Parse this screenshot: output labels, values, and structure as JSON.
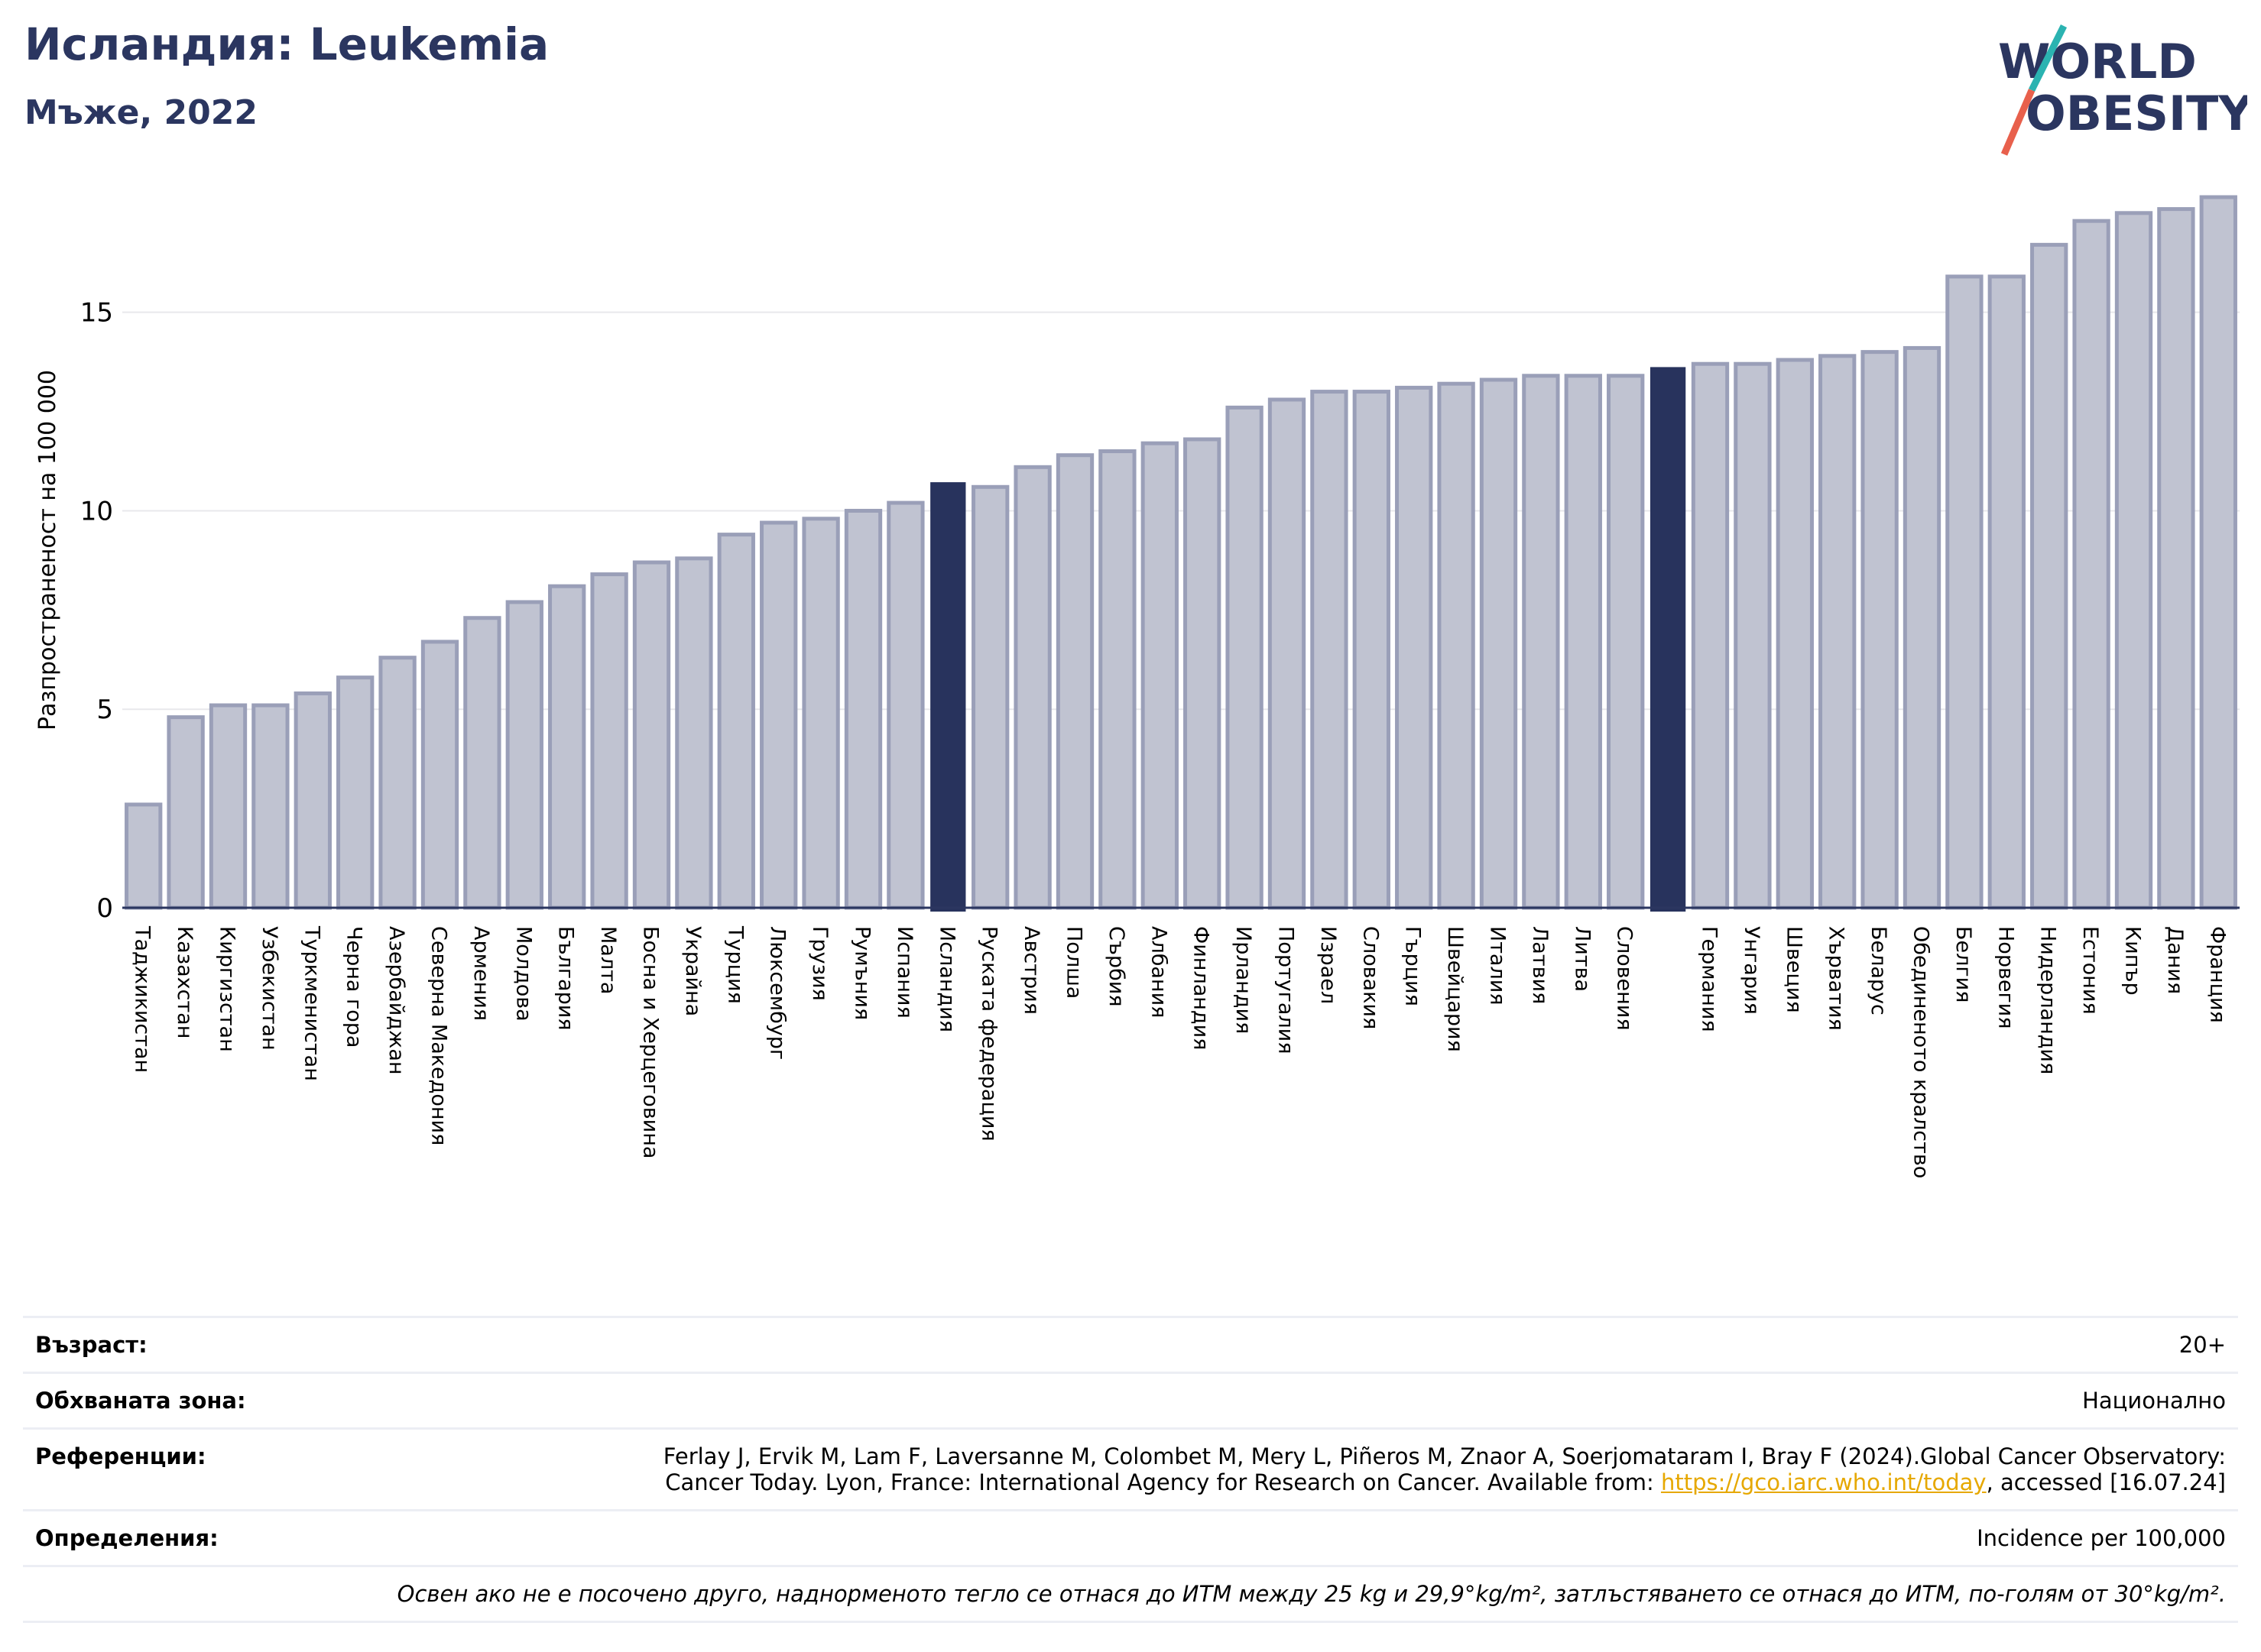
{
  "header": {
    "title": "Исландия: Leukemia",
    "subtitle": "Мъже, 2022"
  },
  "logo": {
    "line1": "WORLD",
    "line2": "OBESITY"
  },
  "colors": {
    "bar": "#c0c3d1",
    "bar_edge": "#9a9fb8",
    "highlight": "#28335d",
    "grid": "#e8e8ec",
    "title": "#2b3660"
  },
  "chart_data": {
    "type": "bar",
    "ylabel": "Разпространеност  на 100 000",
    "ylim": [
      0,
      18.3
    ],
    "yticks": [
      0,
      5,
      10,
      15
    ],
    "highlighted": [
      "Исландия",
      "Словения-Германия gap"
    ],
    "categories": [
      "Таджикистан",
      "Казахстан",
      "Киргизстан",
      "Узбекистан",
      "Туркменистан",
      "Черна гора",
      "Азербайджан",
      "Северна Македония",
      "Армения",
      "Молдова",
      "България",
      "Малта",
      "Босна и Херцеговина",
      "Украйна",
      "Турция",
      "Люксембург",
      "Грузия",
      "Румъния",
      "Испания",
      "Исландия",
      "Руската федерация",
      "Австрия",
      "Полша",
      "Сърбия",
      "Албания",
      "Финландия",
      "Ирландия",
      "Португалия",
      "Израел",
      "Словакия",
      "Гърция",
      "Швейцария",
      "Италия",
      "Латвия",
      "Литва",
      "Словения",
      "",
      "Германия",
      "Унгария",
      "Швеция",
      "Хърватия",
      "Беларус",
      "Обединеното кралство",
      "Белгия",
      "Норвегия",
      "Нидерландия",
      "Естония",
      "Кипър",
      "Дания",
      "Франция"
    ],
    "values": [
      2.6,
      4.8,
      5.1,
      5.1,
      5.4,
      5.8,
      6.3,
      6.7,
      7.3,
      7.7,
      8.1,
      8.4,
      8.7,
      8.8,
      9.4,
      9.7,
      9.8,
      10.0,
      10.2,
      10.7,
      10.6,
      11.1,
      11.4,
      11.5,
      11.7,
      11.8,
      12.6,
      12.8,
      13.0,
      13.0,
      13.1,
      13.2,
      13.3,
      13.4,
      13.4,
      13.4,
      13.6,
      13.7,
      13.7,
      13.8,
      13.9,
      14.0,
      14.1,
      15.9,
      15.9,
      16.7,
      17.3,
      17.5,
      17.6,
      17.9
    ],
    "highlight_index": [
      19,
      36
    ]
  },
  "info": {
    "age_label": "Възраст:",
    "age_value": "20+",
    "coverage_label": "Обхваната зона:",
    "coverage_value": "Национално",
    "refs_label": "Референции:",
    "refs_line1": "Ferlay J, Ervik M, Lam F, Laversanne M, Colombet M, Mery L, Piñeros M, Znaor A, Soerjomataram I, Bray F (2024).Global Cancer Observatory:",
    "refs_line2_pre": "Cancer Today. Lyon, France: International Agency for Research on Cancer. Available from: ",
    "refs_link": "https://gco.iarc.who.int/today",
    "refs_line2_post": ", accessed [16.07.24]",
    "defs_label": "Определения:",
    "defs_value": "Incidence per 100,000",
    "note": "Освен ако не е посочено друго, наднорменото тегло се отнася до ИТМ между 25 kg и 29,9°kg/m², затлъстяването се отнася до ИТМ, по-голям от 30°kg/m²."
  }
}
